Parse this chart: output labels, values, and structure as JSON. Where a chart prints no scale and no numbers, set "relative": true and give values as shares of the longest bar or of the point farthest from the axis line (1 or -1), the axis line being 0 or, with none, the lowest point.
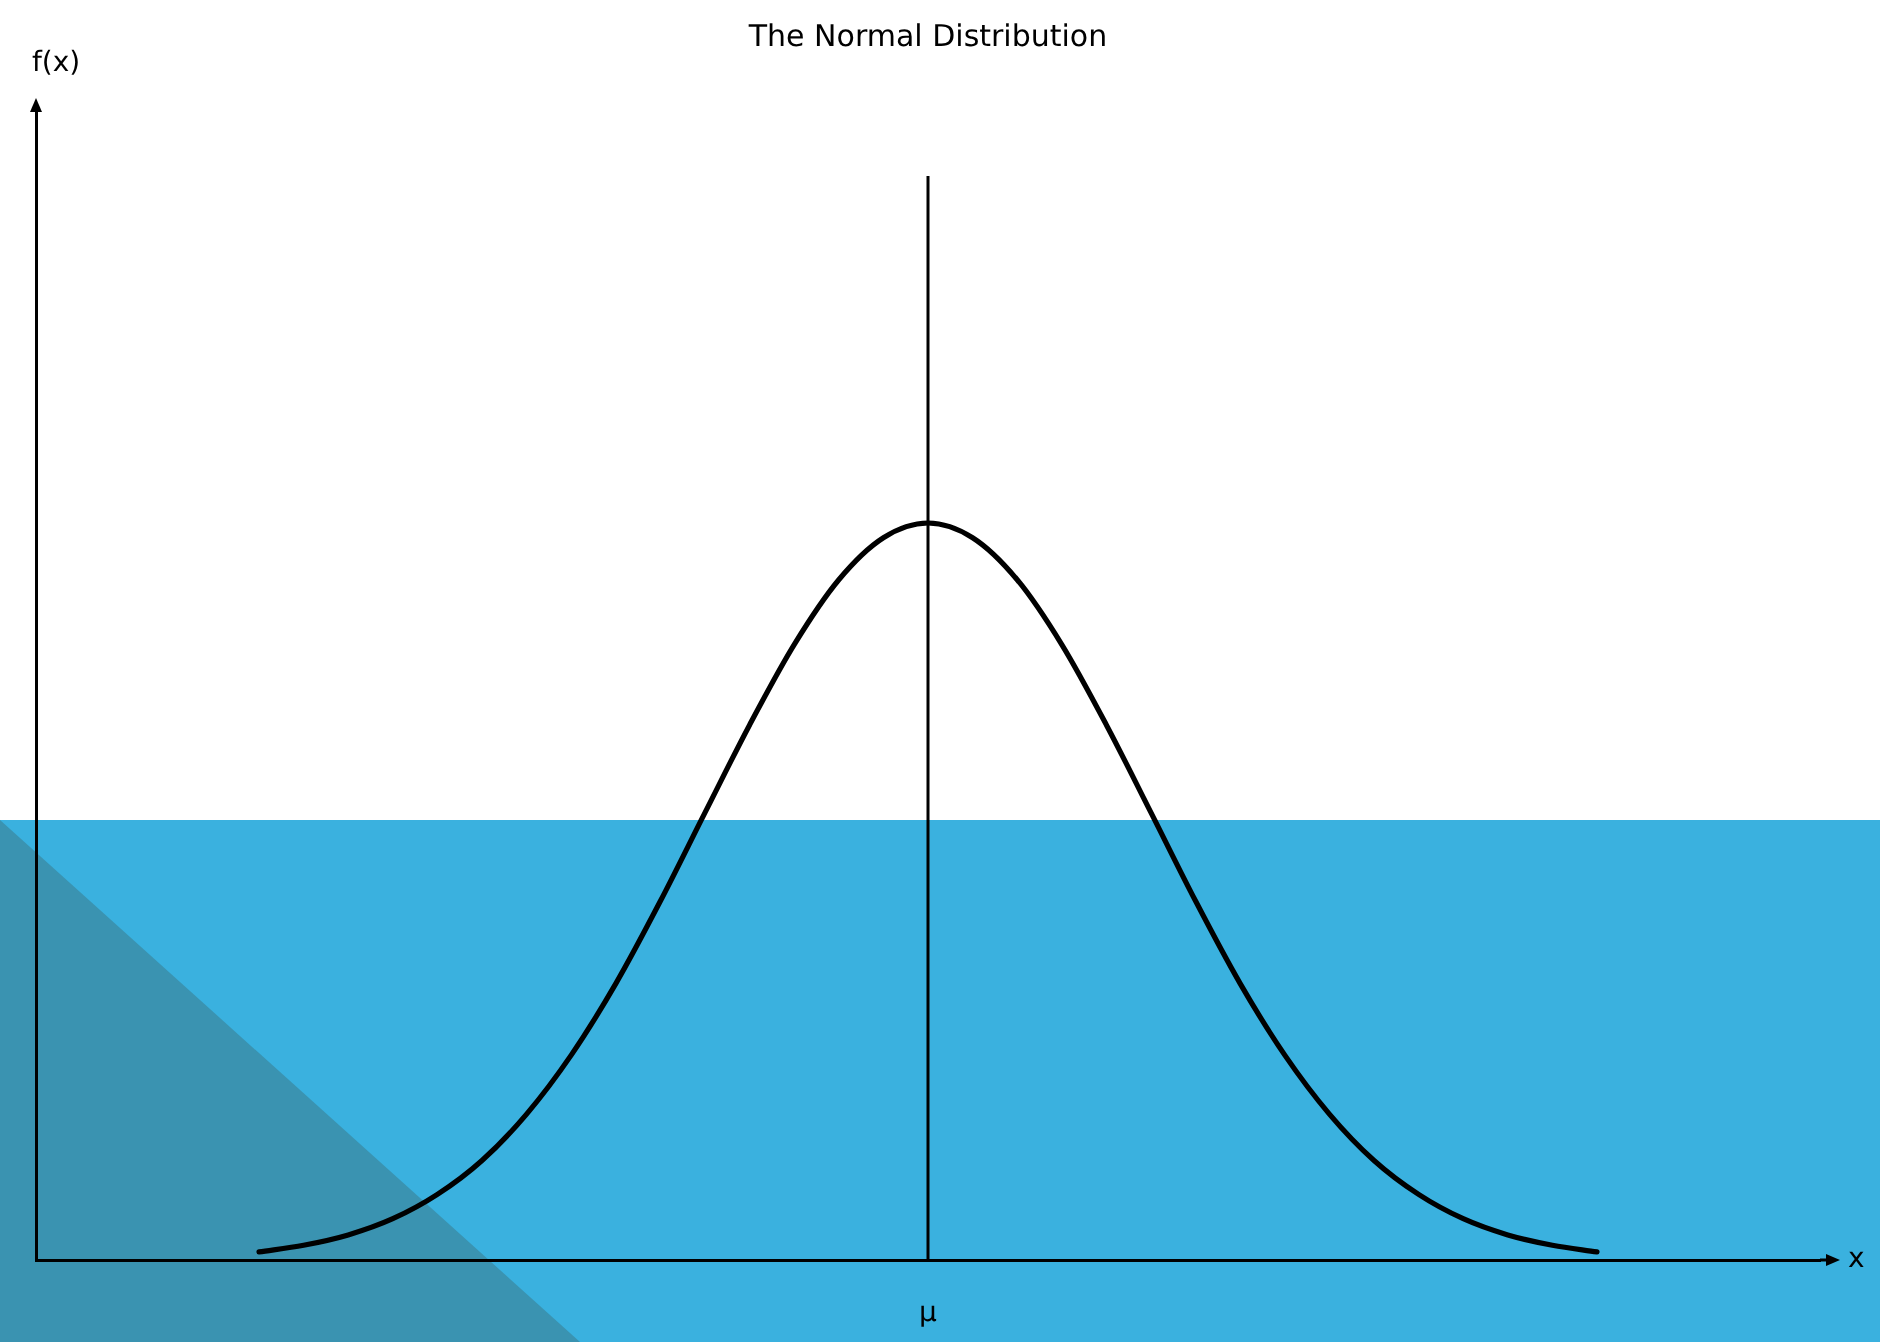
{
  "chart_data": {
    "type": "line",
    "title": "The Normal Distribution",
    "xlabel": "x",
    "relative": true,
    "categories": [
      null,
      null,
      null,
      null,
      null,
      null,
      null,
      null,
      null,
      null,
      null,
      null,
      null,
      null,
      null,
      null,
      null,
      null,
      null,
      null,
      null,
      null,
      null,
      null,
      null,
      null,
      null,
      null,
      null,
      null,
      null,
      null,
      null,
      null,
      null,
      null,
      null,
      null,
      null,
      null,
      null
    ],
    "values": [
      null,
      null,
      null,
      null,
      null,
      0.011,
      0.02,
      0.034,
      0.056,
      0.089,
      0.135,
      0.198,
      0.278,
      0.375,
      0.487,
      0.607,
      0.726,
      0.835,
      0.923,
      0.98,
      1,
      0.98,
      0.923,
      0.835,
      0.726,
      0.607,
      0.487,
      0.375,
      0.278,
      0.198,
      0.135,
      0.089,
      0.056,
      0.034,
      0.02,
      0.011,
      null,
      null,
      null,
      null,
      null
    ],
    "color": "#000000",
    "annotations": [
      "f(x)",
      "μ"
    ]
  }
}
